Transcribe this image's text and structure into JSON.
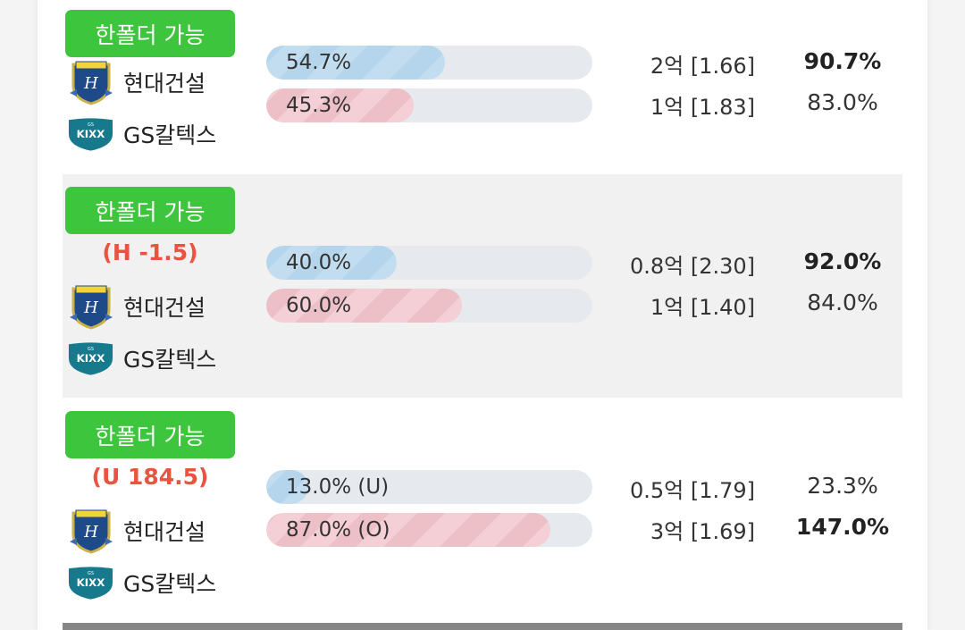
{
  "colors": {
    "badge": "#3dc63d",
    "handicap": "#e9533f",
    "home_bar": "#c3ddf0",
    "away_bar": "#f4cfd5",
    "track": "#e6eaef"
  },
  "matches": [
    {
      "badge": "한폴더 가능",
      "handicap": "",
      "home": {
        "name": "현대건설",
        "logo": "hyundai-shield-icon"
      },
      "away": {
        "name": "GS칼텍스",
        "logo": "gs-kixx-icon"
      },
      "bars": [
        {
          "label": "54.7%",
          "value": 54.7
        },
        {
          "label": "45.3%",
          "value": 45.3
        }
      ],
      "money": [
        "2억 [1.66]",
        "1억 [1.83]"
      ],
      "pct": [
        "90.7%",
        "83.0%"
      ],
      "bold": [
        true,
        false
      ]
    },
    {
      "badge": "한폴더 가능",
      "handicap": "(H -1.5)",
      "home": {
        "name": "현대건설",
        "logo": "hyundai-shield-icon"
      },
      "away": {
        "name": "GS칼텍스",
        "logo": "gs-kixx-icon"
      },
      "bars": [
        {
          "label": "40.0%",
          "value": 40.0
        },
        {
          "label": "60.0%",
          "value": 60.0
        }
      ],
      "money": [
        "0.8억 [2.30]",
        "1억 [1.40]"
      ],
      "pct": [
        "92.0%",
        "84.0%"
      ],
      "bold": [
        true,
        false
      ]
    },
    {
      "badge": "한폴더 가능",
      "handicap": "(U 184.5)",
      "home": {
        "name": "현대건설",
        "logo": "hyundai-shield-icon"
      },
      "away": {
        "name": "GS칼텍스",
        "logo": "gs-kixx-icon"
      },
      "bars": [
        {
          "label": "13.0% (U)",
          "value": 13.0
        },
        {
          "label": "87.0% (O)",
          "value": 87.0
        }
      ],
      "money": [
        "0.5억 [1.79]",
        "3억 [1.69]"
      ],
      "pct": [
        "23.3%",
        "147.0%"
      ],
      "bold": [
        false,
        true
      ]
    }
  ]
}
